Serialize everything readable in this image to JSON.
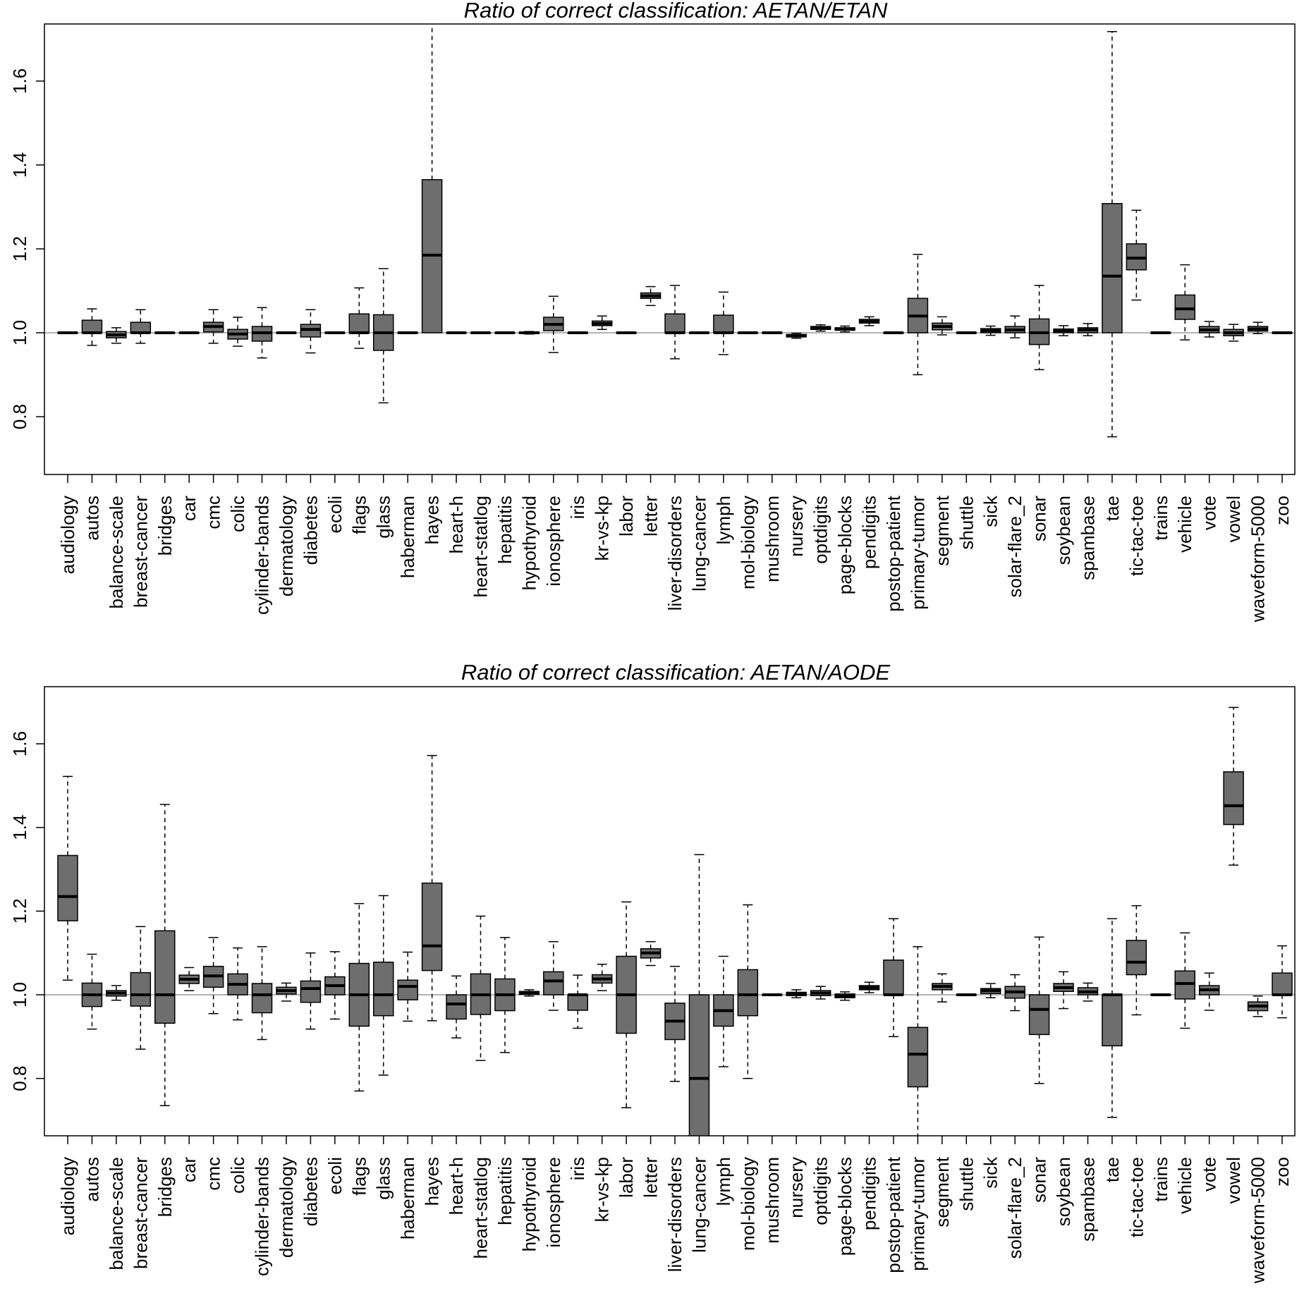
{
  "colors": {
    "box_fill": "#6e6e6e",
    "box_stroke": "#000000",
    "baseline": "#9a9a9a",
    "frame": "#000000"
  },
  "chart_data": [
    {
      "type": "box",
      "title": "Ratio of correct classification: AETAN/ETAN",
      "xlabel": "",
      "ylabel": "",
      "ylim": [
        0.66,
        1.74
      ],
      "yticks": [
        "0.8",
        "1.0",
        "1.2",
        "1.4",
        "1.6"
      ],
      "reference_line": 1.0,
      "categories": [
        "audiology",
        "autos",
        "balance-scale",
        "breast-cancer",
        "bridges",
        "car",
        "cmc",
        "colic",
        "cylinder-bands",
        "dermatology",
        "diabetes",
        "ecoli",
        "flags",
        "glass",
        "haberman",
        "hayes",
        "heart-h",
        "heart-statlog",
        "hepatitis",
        "hypothyroid",
        "ionosphere",
        "iris",
        "kr-vs-kp",
        "labor",
        "letter",
        "liver-disorders",
        "lung-cancer",
        "lymph",
        "mol-biology",
        "mushroom",
        "nursery",
        "optdigits",
        "page-blocks",
        "pendigits",
        "postop-patient",
        "primary-tumor",
        "segment",
        "shuttle",
        "sick",
        "solar-flare_2",
        "sonar",
        "soybean",
        "spambase",
        "tae",
        "tic-tac-toe",
        "trains",
        "vehicle",
        "vote",
        "vowel",
        "waveform-5000",
        "zoo"
      ],
      "boxes": [
        {
          "min": 1.0,
          "q1": 1.0,
          "median": 1.0,
          "q3": 1.0,
          "max": 1.0
        },
        {
          "min": 0.97,
          "q1": 1.0,
          "median": 1.0,
          "q3": 1.03,
          "max": 1.057
        },
        {
          "min": 0.975,
          "q1": 0.988,
          "median": 0.995,
          "q3": 1.003,
          "max": 1.012
        },
        {
          "min": 0.975,
          "q1": 1.0,
          "median": 1.0,
          "q3": 1.025,
          "max": 1.055
        },
        {
          "min": 1.0,
          "q1": 1.0,
          "median": 1.0,
          "q3": 1.0,
          "max": 1.0
        },
        {
          "min": 1.0,
          "q1": 1.0,
          "median": 1.0,
          "q3": 1.0,
          "max": 1.0
        },
        {
          "min": 0.975,
          "q1": 1.002,
          "median": 1.015,
          "q3": 1.025,
          "max": 1.055
        },
        {
          "min": 0.968,
          "q1": 0.985,
          "median": 0.997,
          "q3": 1.008,
          "max": 1.037
        },
        {
          "min": 0.94,
          "q1": 0.98,
          "median": 1.0,
          "q3": 1.015,
          "max": 1.06
        },
        {
          "min": 1.0,
          "q1": 1.0,
          "median": 1.0,
          "q3": 1.0,
          "max": 1.0
        },
        {
          "min": 0.952,
          "q1": 0.99,
          "median": 1.008,
          "q3": 1.02,
          "max": 1.055
        },
        {
          "min": 1.0,
          "q1": 1.0,
          "median": 1.0,
          "q3": 1.0,
          "max": 1.0
        },
        {
          "min": 0.963,
          "q1": 1.0,
          "median": 1.0,
          "q3": 1.045,
          "max": 1.107
        },
        {
          "min": 0.833,
          "q1": 0.958,
          "median": 1.0,
          "q3": 1.043,
          "max": 1.153
        },
        {
          "min": 1.0,
          "q1": 1.0,
          "median": 1.0,
          "q3": 1.0,
          "max": 1.0
        },
        {
          "min": 1.0,
          "q1": 1.0,
          "median": 1.185,
          "q3": 1.365,
          "max": 1.74
        },
        {
          "min": 1.0,
          "q1": 1.0,
          "median": 1.0,
          "q3": 1.0,
          "max": 1.0
        },
        {
          "min": 1.0,
          "q1": 1.0,
          "median": 1.0,
          "q3": 1.0,
          "max": 1.0
        },
        {
          "min": 1.0,
          "q1": 1.0,
          "median": 1.0,
          "q3": 1.0,
          "max": 1.0
        },
        {
          "min": 0.997,
          "q1": 0.998,
          "median": 1.0,
          "q3": 1.002,
          "max": 1.003
        },
        {
          "min": 0.953,
          "q1": 1.005,
          "median": 1.02,
          "q3": 1.037,
          "max": 1.087
        },
        {
          "min": 1.0,
          "q1": 1.0,
          "median": 1.0,
          "q3": 1.0,
          "max": 1.0
        },
        {
          "min": 1.008,
          "q1": 1.017,
          "median": 1.022,
          "q3": 1.028,
          "max": 1.04
        },
        {
          "min": 1.0,
          "q1": 1.0,
          "median": 1.0,
          "q3": 1.0,
          "max": 1.0
        },
        {
          "min": 1.065,
          "q1": 1.082,
          "median": 1.088,
          "q3": 1.095,
          "max": 1.11
        },
        {
          "min": 0.938,
          "q1": 1.0,
          "median": 1.0,
          "q3": 1.045,
          "max": 1.113
        },
        {
          "min": 1.0,
          "q1": 1.0,
          "median": 1.0,
          "q3": 1.0,
          "max": 1.0
        },
        {
          "min": 0.948,
          "q1": 1.0,
          "median": 1.0,
          "q3": 1.042,
          "max": 1.097
        },
        {
          "min": 1.0,
          "q1": 1.0,
          "median": 1.0,
          "q3": 1.0,
          "max": 1.0
        },
        {
          "min": 1.0,
          "q1": 1.0,
          "median": 1.0,
          "q3": 1.0,
          "max": 1.0
        },
        {
          "min": 0.987,
          "q1": 0.99,
          "median": 0.993,
          "q3": 0.996,
          "max": 0.999
        },
        {
          "min": 1.004,
          "q1": 1.008,
          "median": 1.011,
          "q3": 1.015,
          "max": 1.019
        },
        {
          "min": 1.002,
          "q1": 1.006,
          "median": 1.009,
          "q3": 1.012,
          "max": 1.016
        },
        {
          "min": 1.017,
          "q1": 1.023,
          "median": 1.027,
          "q3": 1.032,
          "max": 1.038
        },
        {
          "min": 1.0,
          "q1": 1.0,
          "median": 1.0,
          "q3": 1.0,
          "max": 1.0
        },
        {
          "min": 0.9,
          "q1": 1.0,
          "median": 1.04,
          "q3": 1.082,
          "max": 1.187
        },
        {
          "min": 0.995,
          "q1": 1.007,
          "median": 1.015,
          "q3": 1.023,
          "max": 1.038
        },
        {
          "min": 1.0,
          "q1": 1.0,
          "median": 1.0,
          "q3": 1.0,
          "max": 1.0
        },
        {
          "min": 0.994,
          "q1": 1.0,
          "median": 1.005,
          "q3": 1.01,
          "max": 1.016
        },
        {
          "min": 0.988,
          "q1": 1.0,
          "median": 1.007,
          "q3": 1.015,
          "max": 1.04
        },
        {
          "min": 0.912,
          "q1": 0.972,
          "median": 1.0,
          "q3": 1.033,
          "max": 1.113
        },
        {
          "min": 0.993,
          "q1": 1.0,
          "median": 1.005,
          "q3": 1.009,
          "max": 1.017
        },
        {
          "min": 0.993,
          "q1": 1.0,
          "median": 1.007,
          "q3": 1.012,
          "max": 1.022
        },
        {
          "min": 0.752,
          "q1": 1.0,
          "median": 1.135,
          "q3": 1.308,
          "max": 1.718
        },
        {
          "min": 1.078,
          "q1": 1.15,
          "median": 1.178,
          "q3": 1.212,
          "max": 1.292
        },
        {
          "min": 1.0,
          "q1": 1.0,
          "median": 1.0,
          "q3": 1.0,
          "max": 1.0
        },
        {
          "min": 0.983,
          "q1": 1.032,
          "median": 1.057,
          "q3": 1.09,
          "max": 1.162
        },
        {
          "min": 0.99,
          "q1": 1.0,
          "median": 1.007,
          "q3": 1.015,
          "max": 1.027
        },
        {
          "min": 0.98,
          "q1": 0.993,
          "median": 1.0,
          "q3": 1.008,
          "max": 1.02
        },
        {
          "min": 0.998,
          "q1": 1.004,
          "median": 1.009,
          "q3": 1.015,
          "max": 1.025
        },
        {
          "min": 1.0,
          "q1": 1.0,
          "median": 1.0,
          "q3": 1.0,
          "max": 1.0
        }
      ]
    },
    {
      "type": "box",
      "title": "Ratio of correct classification: AETAN/AODE",
      "xlabel": "",
      "ylabel": "",
      "ylim": [
        0.66,
        1.74
      ],
      "yticks": [
        "0.8",
        "1.0",
        "1.2",
        "1.4",
        "1.6"
      ],
      "reference_line": 1.0,
      "categories": [
        "audiology",
        "autos",
        "balance-scale",
        "breast-cancer",
        "bridges",
        "car",
        "cmc",
        "colic",
        "cylinder-bands",
        "dermatology",
        "diabetes",
        "ecoli",
        "flags",
        "glass",
        "haberman",
        "hayes",
        "heart-h",
        "heart-statlog",
        "hepatitis",
        "hypothyroid",
        "ionosphere",
        "iris",
        "kr-vs-kp",
        "labor",
        "letter",
        "liver-disorders",
        "lung-cancer",
        "lymph",
        "mol-biology",
        "mushroom",
        "nursery",
        "optdigits",
        "page-blocks",
        "pendigits",
        "postop-patient",
        "primary-tumor",
        "segment",
        "shuttle",
        "sick",
        "solar-flare_2",
        "sonar",
        "soybean",
        "spambase",
        "tae",
        "tic-tac-toe",
        "trains",
        "vehicle",
        "vote",
        "vowel",
        "waveform-5000",
        "zoo"
      ],
      "boxes": [
        {
          "min": 1.035,
          "q1": 1.177,
          "median": 1.235,
          "q3": 1.333,
          "max": 1.522
        },
        {
          "min": 0.918,
          "q1": 0.972,
          "median": 1.0,
          "q3": 1.028,
          "max": 1.097
        },
        {
          "min": 0.987,
          "q1": 0.997,
          "median": 1.004,
          "q3": 1.01,
          "max": 1.022
        },
        {
          "min": 0.87,
          "q1": 0.973,
          "median": 1.0,
          "q3": 1.053,
          "max": 1.163
        },
        {
          "min": 0.735,
          "q1": 0.932,
          "median": 1.0,
          "q3": 1.153,
          "max": 1.455
        },
        {
          "min": 1.01,
          "q1": 1.027,
          "median": 1.037,
          "q3": 1.047,
          "max": 1.065
        },
        {
          "min": 0.955,
          "q1": 1.018,
          "median": 1.045,
          "q3": 1.068,
          "max": 1.137
        },
        {
          "min": 0.94,
          "q1": 1.0,
          "median": 1.025,
          "q3": 1.05,
          "max": 1.112
        },
        {
          "min": 0.893,
          "q1": 0.957,
          "median": 1.0,
          "q3": 1.027,
          "max": 1.115
        },
        {
          "min": 0.985,
          "q1": 1.002,
          "median": 1.01,
          "q3": 1.018,
          "max": 1.028
        },
        {
          "min": 0.918,
          "q1": 0.982,
          "median": 1.015,
          "q3": 1.033,
          "max": 1.1
        },
        {
          "min": 0.942,
          "q1": 1.0,
          "median": 1.022,
          "q3": 1.043,
          "max": 1.103
        },
        {
          "min": 0.77,
          "q1": 0.925,
          "median": 1.0,
          "q3": 1.075,
          "max": 1.218
        },
        {
          "min": 0.808,
          "q1": 0.95,
          "median": 1.0,
          "q3": 1.078,
          "max": 1.237
        },
        {
          "min": 0.937,
          "q1": 0.988,
          "median": 1.02,
          "q3": 1.035,
          "max": 1.102
        },
        {
          "min": 0.938,
          "q1": 1.058,
          "median": 1.117,
          "q3": 1.267,
          "max": 1.572
        },
        {
          "min": 0.897,
          "q1": 0.942,
          "median": 0.978,
          "q3": 1.0,
          "max": 1.045
        },
        {
          "min": 0.843,
          "q1": 0.953,
          "median": 1.0,
          "q3": 1.05,
          "max": 1.188
        },
        {
          "min": 0.862,
          "q1": 0.962,
          "median": 1.0,
          "q3": 1.038,
          "max": 1.137
        },
        {
          "min": 0.997,
          "q1": 1.001,
          "median": 1.005,
          "q3": 1.008,
          "max": 1.012
        },
        {
          "min": 0.963,
          "q1": 1.0,
          "median": 1.033,
          "q3": 1.055,
          "max": 1.127
        },
        {
          "min": 0.92,
          "q1": 0.963,
          "median": 1.0,
          "q3": 1.0,
          "max": 1.047
        },
        {
          "min": 1.01,
          "q1": 1.028,
          "median": 1.038,
          "q3": 1.048,
          "max": 1.073
        },
        {
          "min": 0.73,
          "q1": 0.908,
          "median": 1.0,
          "q3": 1.092,
          "max": 1.222
        },
        {
          "min": 1.07,
          "q1": 1.088,
          "median": 1.1,
          "q3": 1.11,
          "max": 1.127
        },
        {
          "min": 0.793,
          "q1": 0.893,
          "median": 0.937,
          "q3": 0.98,
          "max": 1.068
        },
        {
          "min": 0.66,
          "q1": 0.66,
          "median": 0.8,
          "q3": 1.0,
          "max": 1.335
        },
        {
          "min": 0.828,
          "q1": 0.925,
          "median": 0.962,
          "q3": 1.0,
          "max": 1.092
        },
        {
          "min": 0.8,
          "q1": 0.95,
          "median": 1.0,
          "q3": 1.06,
          "max": 1.215
        },
        {
          "min": 1.0,
          "q1": 1.0,
          "median": 1.0,
          "q3": 1.0,
          "max": 1.0
        },
        {
          "min": 0.993,
          "q1": 0.998,
          "median": 1.002,
          "q3": 1.006,
          "max": 1.012
        },
        {
          "min": 0.99,
          "q1": 0.998,
          "median": 1.004,
          "q3": 1.01,
          "max": 1.02
        },
        {
          "min": 0.987,
          "q1": 0.993,
          "median": 0.997,
          "q3": 1.002,
          "max": 1.007
        },
        {
          "min": 1.005,
          "q1": 1.012,
          "median": 1.017,
          "q3": 1.022,
          "max": 1.03
        },
        {
          "min": 0.9,
          "q1": 1.0,
          "median": 1.0,
          "q3": 1.083,
          "max": 1.182
        },
        {
          "min": 0.66,
          "q1": 0.78,
          "median": 0.858,
          "q3": 0.922,
          "max": 1.115
        },
        {
          "min": 0.983,
          "q1": 1.012,
          "median": 1.02,
          "q3": 1.027,
          "max": 1.05
        },
        {
          "min": 1.0,
          "q1": 1.0,
          "median": 1.0,
          "q3": 1.0,
          "max": 1.0
        },
        {
          "min": 0.993,
          "q1": 1.003,
          "median": 1.01,
          "q3": 1.015,
          "max": 1.027
        },
        {
          "min": 0.962,
          "q1": 0.992,
          "median": 1.007,
          "q3": 1.02,
          "max": 1.048
        },
        {
          "min": 0.788,
          "q1": 0.905,
          "median": 0.965,
          "q3": 1.0,
          "max": 1.138
        },
        {
          "min": 0.967,
          "q1": 1.008,
          "median": 1.017,
          "q3": 1.027,
          "max": 1.055
        },
        {
          "min": 0.985,
          "q1": 1.0,
          "median": 1.007,
          "q3": 1.017,
          "max": 1.028
        },
        {
          "min": 0.707,
          "q1": 0.878,
          "median": 1.0,
          "q3": 1.0,
          "max": 1.182
        },
        {
          "min": 0.952,
          "q1": 1.048,
          "median": 1.078,
          "q3": 1.13,
          "max": 1.213
        },
        {
          "min": 1.0,
          "q1": 1.0,
          "median": 1.0,
          "q3": 1.0,
          "max": 1.0
        },
        {
          "min": 0.92,
          "q1": 0.99,
          "median": 1.027,
          "q3": 1.057,
          "max": 1.148
        },
        {
          "min": 0.963,
          "q1": 1.0,
          "median": 1.012,
          "q3": 1.022,
          "max": 1.052
        },
        {
          "min": 1.31,
          "q1": 1.407,
          "median": 1.452,
          "q3": 1.533,
          "max": 1.687
        },
        {
          "min": 0.948,
          "q1": 0.962,
          "median": 0.973,
          "q3": 0.983,
          "max": 0.997
        },
        {
          "min": 0.945,
          "q1": 1.0,
          "median": 1.0,
          "q3": 1.052,
          "max": 1.117
        }
      ]
    }
  ]
}
